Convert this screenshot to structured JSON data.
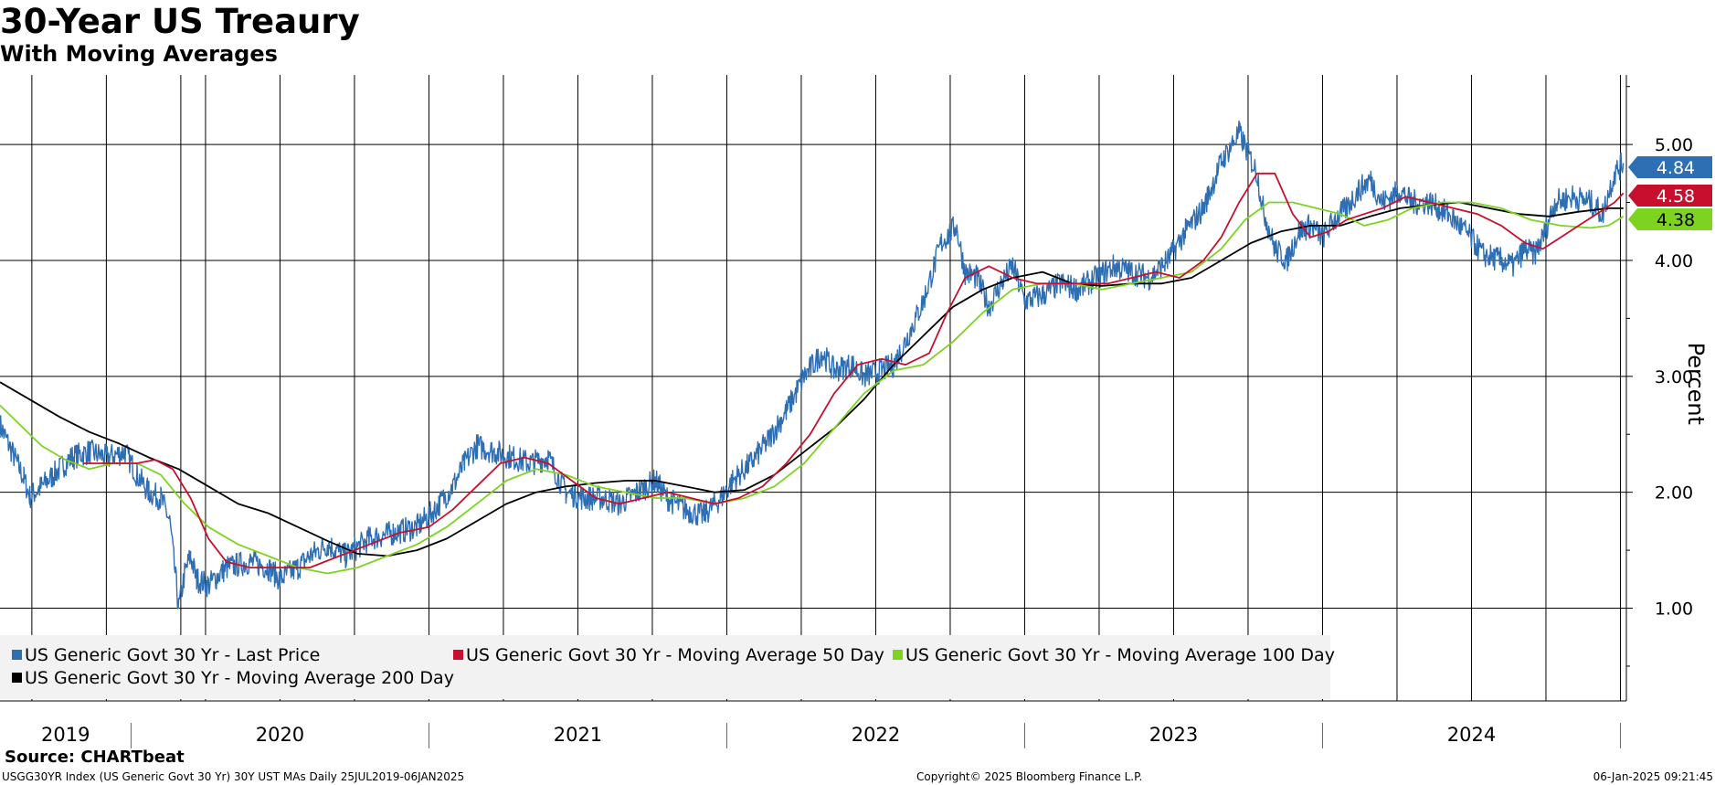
{
  "title": "30-Year US Treaury",
  "subtitle": "With Moving Averages",
  "source": "Source: CHARTbeat",
  "footer": {
    "left": "USGG30YR Index (US Generic Govt 30 Yr) 30Y UST MAs  Daily 25JUL2019-06JAN2025",
    "center": "Copyright© 2025 Bloomberg Finance L.P.",
    "right": "06-Jan-2025 09:21:45"
  },
  "colors": {
    "last_price": "#2e6fb4",
    "ma50": "#c8102e",
    "ma100": "#7ed321",
    "ma200": "#000000",
    "grid": "#000000",
    "legend_bg": "#f2f2f2"
  },
  "legend": [
    {
      "label": "US Generic Govt 30 Yr - Last Price",
      "color": "#2e6fb4"
    },
    {
      "label": "US Generic Govt 30 Yr - Moving Average 50 Day",
      "color": "#c8102e"
    },
    {
      "label": "US Generic Govt 30 Yr - Moving Average 100 Day",
      "color": "#7ed321"
    },
    {
      "label": "US Generic Govt 30 Yr - Moving Average 200 Day",
      "color": "#000000"
    }
  ],
  "chart_data": {
    "type": "line",
    "title": "30-Year US Treaury",
    "subtitle": "With Moving Averages",
    "ylabel": "Percent",
    "xlabel": "",
    "ylim": [
      0.2,
      5.6
    ],
    "xlim": [
      2019.56,
      2025.02
    ],
    "yticks": [
      1.0,
      2.0,
      3.0,
      4.0,
      5.0
    ],
    "ytick_labels": [
      "1.00",
      "2.00",
      "3.00",
      "4.00",
      "5.00"
    ],
    "x_year_labels": [
      {
        "label": "2019",
        "x": 2019.78
      },
      {
        "label": "2020",
        "x": 2020.5
      },
      {
        "label": "2021",
        "x": 2021.5
      },
      {
        "label": "2022",
        "x": 2022.5
      },
      {
        "label": "2023",
        "x": 2023.5
      },
      {
        "label": "2024",
        "x": 2024.5
      }
    ],
    "year_boundaries": [
      2020.0,
      2021.0,
      2022.0,
      2023.0,
      2024.0,
      2025.0
    ],
    "month_gridlines": [
      2019.667,
      2019.917,
      2020.167,
      2020.25,
      2020.5,
      2020.75,
      2021.0,
      2021.25,
      2021.5,
      2021.75,
      2022.0,
      2022.25,
      2022.5,
      2022.75,
      2023.0,
      2023.25,
      2023.5,
      2023.75,
      2024.0,
      2024.25,
      2024.5,
      2024.75,
      2025.0
    ],
    "grid": true,
    "legend_position": "bottom-left",
    "last_value_labels": [
      {
        "series": "US Generic Govt 30 Yr - Last Price",
        "value": 4.84
      },
      {
        "series": "US Generic Govt 30 Yr - Moving Average 50 Day",
        "value": 4.58
      },
      {
        "series": "US Generic Govt 30 Yr - Moving Average 100 Day",
        "value": 4.38
      }
    ],
    "series": [
      {
        "name": "US Generic Govt 30 Yr - Last Price",
        "x": [
          2019.56,
          2019.6,
          2019.64,
          2019.66,
          2019.7,
          2019.74,
          2019.8,
          2019.86,
          2019.92,
          2019.98,
          2020.02,
          2020.06,
          2020.1,
          2020.13,
          2020.16,
          2020.18,
          2020.2,
          2020.22,
          2020.26,
          2020.32,
          2020.4,
          2020.46,
          2020.5,
          2020.56,
          2020.6,
          2020.66,
          2020.72,
          2020.8,
          2020.88,
          2020.96,
          2021.02,
          2021.08,
          2021.12,
          2021.16,
          2021.22,
          2021.28,
          2021.34,
          2021.4,
          2021.46,
          2021.52,
          2021.58,
          2021.64,
          2021.7,
          2021.76,
          2021.8,
          2021.86,
          2021.92,
          2021.98,
          2022.02,
          2022.08,
          2022.14,
          2022.2,
          2022.26,
          2022.32,
          2022.36,
          2022.42,
          2022.46,
          2022.52,
          2022.56,
          2022.6,
          2022.66,
          2022.72,
          2022.77,
          2022.8,
          2022.84,
          2022.88,
          2022.92,
          2022.96,
          2023.0,
          2023.06,
          2023.12,
          2023.18,
          2023.24,
          2023.3,
          2023.36,
          2023.42,
          2023.48,
          2023.54,
          2023.6,
          2023.66,
          2023.72,
          2023.78,
          2023.8,
          2023.84,
          2023.88,
          2023.92,
          2023.96,
          2024.0,
          2024.04,
          2024.08,
          2024.12,
          2024.16,
          2024.2,
          2024.26,
          2024.3,
          2024.36,
          2024.42,
          2024.48,
          2024.54,
          2024.6,
          2024.64,
          2024.68,
          2024.71,
          2024.74,
          2024.78,
          2024.84,
          2024.9,
          2024.94,
          2024.98,
          2025.01
        ],
        "values": [
          2.58,
          2.35,
          2.12,
          1.96,
          2.05,
          2.15,
          2.3,
          2.35,
          2.3,
          2.35,
          2.15,
          2.0,
          1.95,
          1.75,
          1.0,
          1.3,
          1.45,
          1.25,
          1.2,
          1.35,
          1.4,
          1.35,
          1.25,
          1.35,
          1.45,
          1.55,
          1.45,
          1.6,
          1.65,
          1.7,
          1.85,
          2.05,
          2.25,
          2.4,
          2.35,
          2.3,
          2.25,
          2.3,
          2.0,
          1.95,
          1.95,
          1.9,
          2.0,
          2.1,
          1.95,
          1.85,
          1.8,
          1.95,
          2.1,
          2.25,
          2.45,
          2.7,
          3.0,
          3.2,
          3.05,
          3.1,
          3.0,
          3.05,
          3.1,
          3.3,
          3.65,
          4.15,
          4.3,
          3.9,
          3.85,
          3.6,
          3.8,
          3.95,
          3.65,
          3.7,
          3.8,
          3.75,
          3.85,
          3.95,
          3.9,
          3.85,
          4.0,
          4.25,
          4.45,
          4.85,
          5.1,
          4.75,
          4.45,
          4.1,
          4.0,
          4.25,
          4.3,
          4.2,
          4.35,
          4.45,
          4.6,
          4.7,
          4.5,
          4.6,
          4.5,
          4.5,
          4.4,
          4.25,
          4.05,
          4.0,
          3.95,
          4.1,
          4.05,
          4.2,
          4.5,
          4.55,
          4.5,
          4.4,
          4.75,
          4.84
        ]
      },
      {
        "name": "US Generic Govt 30 Yr - Moving Average 50 Day",
        "x": [
          2019.84,
          2019.9,
          2019.96,
          2020.02,
          2020.08,
          2020.14,
          2020.2,
          2020.26,
          2020.32,
          2020.4,
          2020.5,
          2020.6,
          2020.7,
          2020.8,
          2020.9,
          2021.0,
          2021.08,
          2021.16,
          2021.24,
          2021.32,
          2021.4,
          2021.48,
          2021.56,
          2021.64,
          2021.72,
          2021.8,
          2021.88,
          2021.96,
          2022.04,
          2022.12,
          2022.2,
          2022.28,
          2022.36,
          2022.44,
          2022.52,
          2022.6,
          2022.68,
          2022.74,
          2022.8,
          2022.88,
          2022.96,
          2023.04,
          2023.12,
          2023.2,
          2023.28,
          2023.36,
          2023.44,
          2023.52,
          2023.6,
          2023.66,
          2023.72,
          2023.78,
          2023.84,
          2023.9,
          2023.96,
          2024.02,
          2024.08,
          2024.14,
          2024.2,
          2024.28,
          2024.36,
          2024.44,
          2024.52,
          2024.6,
          2024.68,
          2024.74,
          2024.8,
          2024.86,
          2024.92,
          2024.98,
          2025.01
        ],
        "values": [
          2.25,
          2.25,
          2.25,
          2.25,
          2.28,
          2.2,
          1.95,
          1.6,
          1.4,
          1.35,
          1.35,
          1.35,
          1.45,
          1.55,
          1.65,
          1.7,
          1.85,
          2.05,
          2.25,
          2.3,
          2.25,
          2.1,
          1.95,
          1.9,
          1.95,
          2.0,
          1.95,
          1.9,
          1.95,
          2.05,
          2.25,
          2.5,
          2.85,
          3.1,
          3.15,
          3.1,
          3.2,
          3.55,
          3.85,
          3.95,
          3.85,
          3.8,
          3.8,
          3.8,
          3.8,
          3.85,
          3.9,
          3.85,
          4.0,
          4.2,
          4.5,
          4.75,
          4.75,
          4.4,
          4.2,
          4.25,
          4.35,
          4.4,
          4.45,
          4.55,
          4.5,
          4.45,
          4.4,
          4.3,
          4.15,
          4.1,
          4.2,
          4.3,
          4.4,
          4.5,
          4.58
        ]
      },
      {
        "name": "US Generic Govt 30 Yr - Moving Average 100 Day",
        "x": [
          2019.56,
          2019.62,
          2019.7,
          2019.78,
          2019.86,
          2019.94,
          2020.02,
          2020.1,
          2020.18,
          2020.26,
          2020.36,
          2020.46,
          2020.56,
          2020.66,
          2020.76,
          2020.86,
          2020.96,
          2021.06,
          2021.16,
          2021.26,
          2021.36,
          2021.46,
          2021.56,
          2021.66,
          2021.76,
          2021.86,
          2021.96,
          2022.06,
          2022.16,
          2022.26,
          2022.36,
          2022.46,
          2022.56,
          2022.66,
          2022.76,
          2022.86,
          2022.96,
          2023.06,
          2023.16,
          2023.26,
          2023.36,
          2023.46,
          2023.56,
          2023.66,
          2023.74,
          2023.82,
          2023.9,
          2023.98,
          2024.06,
          2024.14,
          2024.22,
          2024.3,
          2024.4,
          2024.5,
          2024.6,
          2024.7,
          2024.8,
          2024.9,
          2024.96,
          2025.01
        ],
        "values": [
          2.75,
          2.6,
          2.4,
          2.28,
          2.2,
          2.25,
          2.25,
          2.15,
          1.9,
          1.7,
          1.55,
          1.45,
          1.35,
          1.3,
          1.35,
          1.45,
          1.55,
          1.7,
          1.9,
          2.1,
          2.2,
          2.15,
          2.05,
          2.0,
          1.95,
          1.95,
          1.9,
          1.95,
          2.05,
          2.25,
          2.55,
          2.85,
          3.05,
          3.1,
          3.3,
          3.55,
          3.75,
          3.8,
          3.8,
          3.75,
          3.8,
          3.85,
          3.9,
          4.1,
          4.35,
          4.5,
          4.5,
          4.45,
          4.4,
          4.3,
          4.35,
          4.45,
          4.5,
          4.5,
          4.45,
          4.35,
          4.3,
          4.28,
          4.3,
          4.38
        ]
      },
      {
        "name": "US Generic Govt 30 Yr - Moving Average 200 Day",
        "x": [
          2019.56,
          2019.66,
          2019.76,
          2019.86,
          2019.96,
          2020.06,
          2020.16,
          2020.26,
          2020.36,
          2020.46,
          2020.56,
          2020.66,
          2020.76,
          2020.86,
          2020.96,
          2021.06,
          2021.16,
          2021.26,
          2021.36,
          2021.46,
          2021.56,
          2021.66,
          2021.76,
          2021.86,
          2021.96,
          2022.06,
          2022.16,
          2022.26,
          2022.36,
          2022.46,
          2022.56,
          2022.66,
          2022.76,
          2022.86,
          2022.96,
          2023.06,
          2023.16,
          2023.26,
          2023.36,
          2023.46,
          2023.56,
          2023.66,
          2023.76,
          2023.86,
          2023.96,
          2024.06,
          2024.16,
          2024.26,
          2024.36,
          2024.46,
          2024.56,
          2024.66,
          2024.76,
          2024.86,
          2024.96,
          2025.01
        ],
        "values": [
          2.95,
          2.8,
          2.65,
          2.52,
          2.42,
          2.3,
          2.2,
          2.05,
          1.9,
          1.82,
          1.7,
          1.58,
          1.47,
          1.45,
          1.5,
          1.6,
          1.75,
          1.9,
          2.0,
          2.05,
          2.08,
          2.1,
          2.1,
          2.05,
          2.0,
          2.02,
          2.15,
          2.35,
          2.55,
          2.8,
          3.1,
          3.35,
          3.6,
          3.75,
          3.85,
          3.9,
          3.8,
          3.78,
          3.8,
          3.8,
          3.85,
          4.0,
          4.15,
          4.25,
          4.3,
          4.3,
          4.38,
          4.45,
          4.48,
          4.5,
          4.45,
          4.4,
          4.38,
          4.42,
          4.45,
          4.45
        ]
      }
    ]
  }
}
